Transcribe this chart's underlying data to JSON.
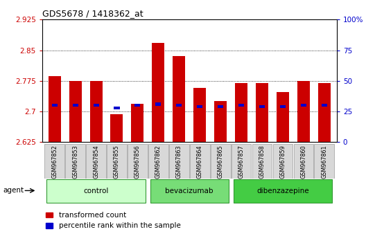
{
  "title": "GDS5678 / 1418362_at",
  "samples": [
    "GSM967852",
    "GSM967853",
    "GSM967854",
    "GSM967855",
    "GSM967856",
    "GSM967862",
    "GSM967863",
    "GSM967864",
    "GSM967865",
    "GSM967857",
    "GSM967858",
    "GSM967859",
    "GSM967860",
    "GSM967861"
  ],
  "red_values": [
    2.787,
    2.775,
    2.775,
    2.693,
    2.718,
    2.868,
    2.835,
    2.757,
    2.725,
    2.77,
    2.77,
    2.748,
    2.775,
    2.77
  ],
  "blue_values": [
    30,
    30,
    30,
    28,
    30,
    31,
    30,
    29,
    29,
    30,
    29,
    29,
    30,
    30
  ],
  "ylim_left": [
    2.625,
    2.925
  ],
  "ylim_right": [
    0,
    100
  ],
  "yticks_left": [
    2.625,
    2.7,
    2.775,
    2.85,
    2.925
  ],
  "yticks_right": [
    0,
    25,
    50,
    75,
    100
  ],
  "bar_color_red": "#cc0000",
  "bar_color_blue": "#0000cc",
  "base": 2.625,
  "tick_label_color_left": "#cc0000",
  "tick_label_color_right": "#0000cc",
  "agent_label": "agent",
  "legend_red": "transformed count",
  "legend_blue": "percentile rank within the sample",
  "bar_width": 0.6,
  "group_defs": [
    {
      "start": 0,
      "end": 4,
      "label": "control",
      "color": "#ccffcc"
    },
    {
      "start": 5,
      "end": 8,
      "label": "bevacizumab",
      "color": "#77dd77"
    },
    {
      "start": 9,
      "end": 13,
      "label": "dibenzazepine",
      "color": "#44cc44"
    }
  ]
}
